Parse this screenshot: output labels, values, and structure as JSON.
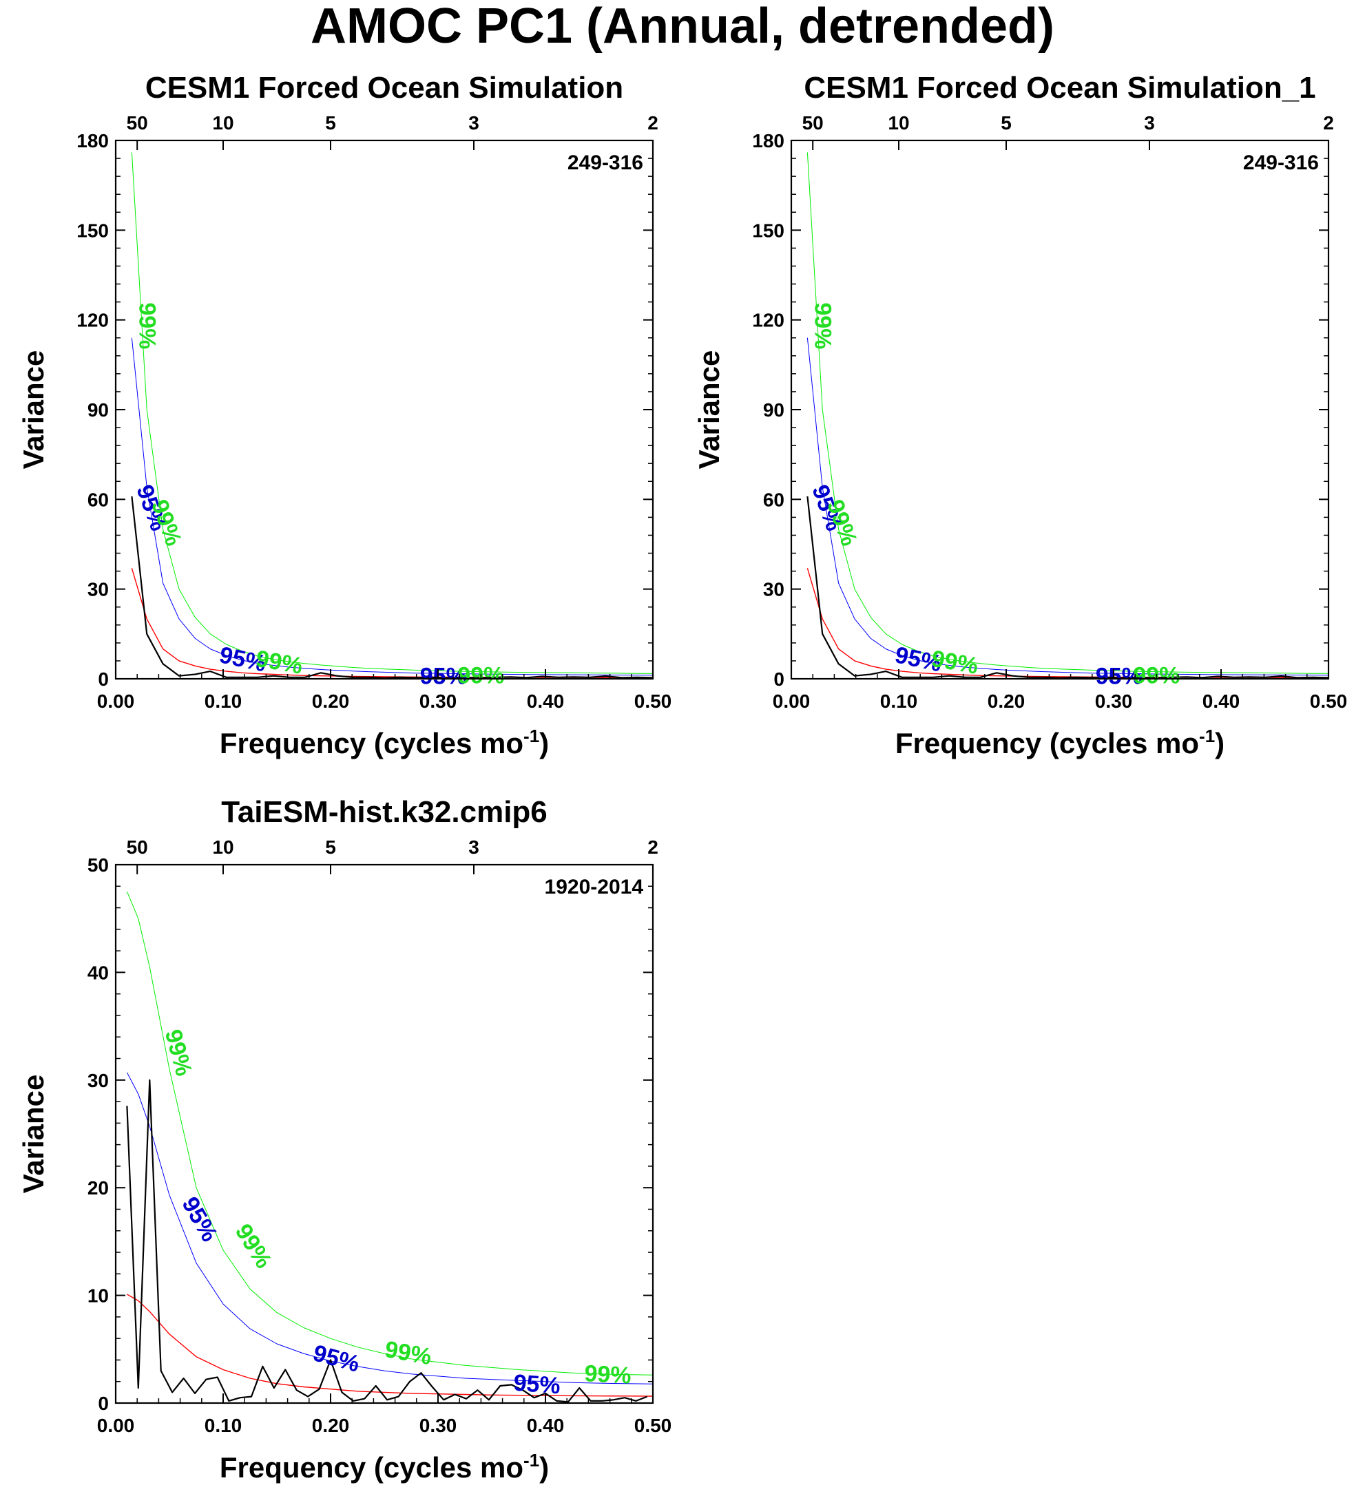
{
  "title": "AMOC PC1 (Annual, detrended)",
  "colors": {
    "spectrum": "#000000",
    "red_noise": "#ff0000",
    "ci95": "#0000ff",
    "ci99": "#00ee00",
    "ci95_text": "#0000cc",
    "ci99_text": "#22dd22"
  },
  "chart_data": [
    {
      "type": "line",
      "title": "CESM1 Forced Ocean Simulation",
      "range_label": "249-316",
      "xlabel": "Frequency (cycles mo",
      "xlabel_sup": "-1",
      "xlabel_close": ")",
      "ylabel": "Variance",
      "xlim": [
        0,
        0.5
      ],
      "ylim": [
        0,
        180
      ],
      "xticks": [
        0.0,
        0.1,
        0.2,
        0.3,
        0.4,
        0.5
      ],
      "xtick_labels": [
        "0.00",
        "0.10",
        "0.20",
        "0.30",
        "0.40",
        "0.50"
      ],
      "yticks": [
        0,
        30,
        60,
        90,
        120,
        150,
        180
      ],
      "ytick_labels": [
        "0",
        "30",
        "60",
        "90",
        "120",
        "150",
        "180"
      ],
      "period_ticks": [
        50,
        10,
        5,
        3,
        2
      ],
      "period_labels": [
        "50",
        "10",
        "5",
        "3",
        "2"
      ],
      "label_95": "95%",
      "label_99": "99%",
      "series": [
        {
          "key": "spectrum",
          "x": [
            0.015,
            0.029,
            0.044,
            0.059,
            0.074,
            0.088,
            0.103,
            0.118,
            0.132,
            0.147,
            0.162,
            0.176,
            0.191,
            0.206,
            0.221,
            0.235,
            0.25,
            0.265,
            0.279,
            0.294,
            0.309,
            0.324,
            0.338,
            0.353,
            0.368,
            0.382,
            0.397,
            0.412,
            0.426,
            0.441,
            0.456,
            0.471,
            0.485,
            0.5
          ],
          "values": [
            61,
            15,
            5,
            1,
            1.5,
            2.5,
            0.5,
            0.5,
            0.5,
            1,
            0.5,
            0.5,
            2,
            1,
            0.5,
            0.5,
            0.3,
            0.5,
            0.4,
            0.5,
            0.3,
            0.5,
            0.3,
            0.5,
            0.6,
            0.4,
            0.8,
            0.5,
            0.6,
            0.5,
            0.9,
            0.4,
            0.5,
            0.4
          ]
        },
        {
          "key": "red_noise",
          "x": [
            0.015,
            0.029,
            0.044,
            0.059,
            0.074,
            0.088,
            0.103,
            0.118,
            0.132,
            0.147,
            0.162,
            0.176,
            0.191,
            0.206,
            0.221,
            0.235,
            0.25,
            0.279,
            0.309,
            0.338,
            0.368,
            0.397,
            0.426,
            0.456,
            0.485,
            0.5
          ],
          "values": [
            37,
            20,
            10,
            6,
            4.3,
            3.2,
            2.5,
            2,
            1.7,
            1.5,
            1.3,
            1.1,
            1,
            0.9,
            0.8,
            0.75,
            0.7,
            0.62,
            0.56,
            0.52,
            0.48,
            0.45,
            0.43,
            0.41,
            0.4,
            0.39
          ]
        },
        {
          "key": "ci95",
          "x": [
            0.015,
            0.029,
            0.044,
            0.059,
            0.074,
            0.088,
            0.103,
            0.118,
            0.132,
            0.147,
            0.162,
            0.176,
            0.191,
            0.206,
            0.221,
            0.235,
            0.25,
            0.279,
            0.309,
            0.338,
            0.368,
            0.397,
            0.426,
            0.456,
            0.485,
            0.5
          ],
          "values": [
            114,
            64,
            32,
            20,
            13.5,
            10,
            7.8,
            6.2,
            5.2,
            4.5,
            3.9,
            3.5,
            3.1,
            2.8,
            2.6,
            2.4,
            2.2,
            1.9,
            1.8,
            1.6,
            1.5,
            1.4,
            1.35,
            1.3,
            1.25,
            1.2
          ]
        },
        {
          "key": "ci99",
          "x": [
            0.015,
            0.029,
            0.044,
            0.059,
            0.074,
            0.088,
            0.103,
            0.118,
            0.132,
            0.147,
            0.162,
            0.176,
            0.191,
            0.206,
            0.221,
            0.235,
            0.25,
            0.279,
            0.309,
            0.338,
            0.368,
            0.397,
            0.426,
            0.456,
            0.485,
            0.5
          ],
          "values": [
            176,
            90,
            50,
            30,
            20.5,
            15,
            11.5,
            9.2,
            7.6,
            6.5,
            5.7,
            5.1,
            4.6,
            4.2,
            3.8,
            3.5,
            3.3,
            2.9,
            2.6,
            2.4,
            2.2,
            2.1,
            2,
            1.9,
            1.8,
            1.8
          ]
        }
      ],
      "curve_labels": [
        {
          "key": "ci99",
          "x": 0.028,
          "y": 118,
          "rotate": 90
        },
        {
          "key": "ci95",
          "x": 0.032,
          "y": 57,
          "rotate": 70
        },
        {
          "key": "ci99",
          "x": 0.046,
          "y": 52,
          "rotate": 70
        },
        {
          "key": "ci95",
          "x": 0.118,
          "y": 6,
          "rotate": 12
        },
        {
          "key": "ci99",
          "x": 0.152,
          "y": 5,
          "rotate": 10
        },
        {
          "key": "ci95",
          "x": 0.305,
          "y": 0.3,
          "rotate": 0
        },
        {
          "key": "ci99",
          "x": 0.34,
          "y": 0.6,
          "rotate": 0
        }
      ]
    },
    {
      "type": "line",
      "title": "CESM1 Forced Ocean Simulation_1",
      "range_label": "249-316",
      "xlabel": "Frequency (cycles mo",
      "xlabel_sup": "-1",
      "xlabel_close": ")",
      "ylabel": "Variance",
      "xlim": [
        0,
        0.5
      ],
      "ylim": [
        0,
        180
      ],
      "xticks": [
        0.0,
        0.1,
        0.2,
        0.3,
        0.4,
        0.5
      ],
      "xtick_labels": [
        "0.00",
        "0.10",
        "0.20",
        "0.30",
        "0.40",
        "0.50"
      ],
      "yticks": [
        0,
        30,
        60,
        90,
        120,
        150,
        180
      ],
      "ytick_labels": [
        "0",
        "30",
        "60",
        "90",
        "120",
        "150",
        "180"
      ],
      "period_ticks": [
        50,
        10,
        5,
        3,
        2
      ],
      "period_labels": [
        "50",
        "10",
        "5",
        "3",
        "2"
      ],
      "label_95": "95%",
      "label_99": "99%",
      "series": [
        {
          "key": "spectrum",
          "x": [
            0.015,
            0.029,
            0.044,
            0.059,
            0.074,
            0.088,
            0.103,
            0.118,
            0.132,
            0.147,
            0.162,
            0.176,
            0.191,
            0.206,
            0.221,
            0.235,
            0.25,
            0.265,
            0.279,
            0.294,
            0.309,
            0.324,
            0.338,
            0.353,
            0.368,
            0.382,
            0.397,
            0.412,
            0.426,
            0.441,
            0.456,
            0.471,
            0.485,
            0.5
          ],
          "values": [
            61,
            15,
            5,
            1,
            1.5,
            2.5,
            0.5,
            0.5,
            0.5,
            1,
            0.5,
            0.5,
            2,
            1,
            0.5,
            0.5,
            0.3,
            0.5,
            0.4,
            0.5,
            0.3,
            0.5,
            0.3,
            0.5,
            0.6,
            0.4,
            0.8,
            0.5,
            0.6,
            0.5,
            0.9,
            0.4,
            0.5,
            0.4
          ]
        },
        {
          "key": "red_noise",
          "x": [
            0.015,
            0.029,
            0.044,
            0.059,
            0.074,
            0.088,
            0.103,
            0.118,
            0.132,
            0.147,
            0.162,
            0.176,
            0.191,
            0.206,
            0.221,
            0.235,
            0.25,
            0.279,
            0.309,
            0.338,
            0.368,
            0.397,
            0.426,
            0.456,
            0.485,
            0.5
          ],
          "values": [
            37,
            20,
            10,
            6,
            4.3,
            3.2,
            2.5,
            2,
            1.7,
            1.5,
            1.3,
            1.1,
            1,
            0.9,
            0.8,
            0.75,
            0.7,
            0.62,
            0.56,
            0.52,
            0.48,
            0.45,
            0.43,
            0.41,
            0.4,
            0.39
          ]
        },
        {
          "key": "ci95",
          "x": [
            0.015,
            0.029,
            0.044,
            0.059,
            0.074,
            0.088,
            0.103,
            0.118,
            0.132,
            0.147,
            0.162,
            0.176,
            0.191,
            0.206,
            0.221,
            0.235,
            0.25,
            0.279,
            0.309,
            0.338,
            0.368,
            0.397,
            0.426,
            0.456,
            0.485,
            0.5
          ],
          "values": [
            114,
            64,
            32,
            20,
            13.5,
            10,
            7.8,
            6.2,
            5.2,
            4.5,
            3.9,
            3.5,
            3.1,
            2.8,
            2.6,
            2.4,
            2.2,
            1.9,
            1.8,
            1.6,
            1.5,
            1.4,
            1.35,
            1.3,
            1.25,
            1.2
          ]
        },
        {
          "key": "ci99",
          "x": [
            0.015,
            0.029,
            0.044,
            0.059,
            0.074,
            0.088,
            0.103,
            0.118,
            0.132,
            0.147,
            0.162,
            0.176,
            0.191,
            0.206,
            0.221,
            0.235,
            0.25,
            0.279,
            0.309,
            0.338,
            0.368,
            0.397,
            0.426,
            0.456,
            0.485,
            0.5
          ],
          "values": [
            176,
            90,
            50,
            30,
            20.5,
            15,
            11.5,
            9.2,
            7.6,
            6.5,
            5.7,
            5.1,
            4.6,
            4.2,
            3.8,
            3.5,
            3.3,
            2.9,
            2.6,
            2.4,
            2.2,
            2.1,
            2,
            1.9,
            1.8,
            1.8
          ]
        }
      ],
      "curve_labels": [
        {
          "key": "ci99",
          "x": 0.028,
          "y": 118,
          "rotate": 90
        },
        {
          "key": "ci95",
          "x": 0.032,
          "y": 57,
          "rotate": 70
        },
        {
          "key": "ci99",
          "x": 0.046,
          "y": 52,
          "rotate": 70
        },
        {
          "key": "ci95",
          "x": 0.118,
          "y": 6,
          "rotate": 12
        },
        {
          "key": "ci99",
          "x": 0.152,
          "y": 5,
          "rotate": 10
        },
        {
          "key": "ci95",
          "x": 0.305,
          "y": 0.3,
          "rotate": 0
        },
        {
          "key": "ci99",
          "x": 0.34,
          "y": 0.6,
          "rotate": 0
        }
      ]
    },
    {
      "type": "line",
      "title": "TaiESM-hist.k32.cmip6",
      "range_label": "1920-2014",
      "xlabel": "Frequency (cycles mo",
      "xlabel_sup": "-1",
      "xlabel_close": ")",
      "ylabel": "Variance",
      "xlim": [
        0,
        0.5
      ],
      "ylim": [
        0,
        50
      ],
      "xticks": [
        0.0,
        0.1,
        0.2,
        0.3,
        0.4,
        0.5
      ],
      "xtick_labels": [
        "0.00",
        "0.10",
        "0.20",
        "0.30",
        "0.40",
        "0.50"
      ],
      "yticks": [
        0,
        10,
        20,
        30,
        40,
        50
      ],
      "ytick_labels": [
        "0",
        "10",
        "20",
        "30",
        "40",
        "50"
      ],
      "period_ticks": [
        50,
        10,
        5,
        3,
        2
      ],
      "period_labels": [
        "50",
        "10",
        "5",
        "3",
        "2"
      ],
      "label_95": "95%",
      "label_99": "99%",
      "series": [
        {
          "key": "spectrum",
          "x": [
            0.0105,
            0.021,
            0.0316,
            0.0421,
            0.0526,
            0.0632,
            0.0737,
            0.0842,
            0.0947,
            0.1053,
            0.1158,
            0.1263,
            0.1368,
            0.1474,
            0.1579,
            0.1684,
            0.1789,
            0.1895,
            0.2,
            0.2105,
            0.2211,
            0.2316,
            0.2421,
            0.2526,
            0.2632,
            0.2737,
            0.2842,
            0.2947,
            0.3053,
            0.3158,
            0.3263,
            0.3368,
            0.3474,
            0.3579,
            0.3684,
            0.3789,
            0.3895,
            0.4,
            0.4105,
            0.4211,
            0.4316,
            0.4421,
            0.4526,
            0.4632,
            0.4737,
            0.4842,
            0.4947
          ],
          "values": [
            27.6,
            1.4,
            30,
            3,
            1,
            2.3,
            0.9,
            2.2,
            2.4,
            0.2,
            0.5,
            0.6,
            3.4,
            1.4,
            3.1,
            1.2,
            0.6,
            1.3,
            4,
            1,
            0.2,
            0.4,
            1.6,
            0.3,
            0.6,
            2,
            2.8,
            1.5,
            0.3,
            0.8,
            0.4,
            1.2,
            0.3,
            1.6,
            1.7,
            1.2,
            0.5,
            0.9,
            0.2,
            0.1,
            1.4,
            0.2,
            0.2,
            0.3,
            0.5,
            0.2,
            0.6
          ]
        },
        {
          "key": "red_noise",
          "x": [
            0.0105,
            0.021,
            0.0316,
            0.05,
            0.075,
            0.1,
            0.125,
            0.15,
            0.175,
            0.2,
            0.225,
            0.25,
            0.275,
            0.3,
            0.325,
            0.35,
            0.375,
            0.4,
            0.425,
            0.45,
            0.475,
            0.5
          ],
          "values": [
            10.1,
            9.5,
            8.5,
            6.4,
            4.3,
            3.1,
            2.3,
            1.8,
            1.5,
            1.3,
            1.1,
            1,
            0.9,
            0.85,
            0.8,
            0.75,
            0.72,
            0.7,
            0.68,
            0.66,
            0.65,
            0.64
          ]
        },
        {
          "key": "ci95",
          "x": [
            0.0105,
            0.021,
            0.0316,
            0.05,
            0.075,
            0.1,
            0.125,
            0.15,
            0.175,
            0.2,
            0.225,
            0.25,
            0.275,
            0.3,
            0.325,
            0.35,
            0.375,
            0.4,
            0.425,
            0.45,
            0.475,
            0.5
          ],
          "values": [
            30.7,
            28.7,
            25.7,
            19.3,
            13,
            9.2,
            6.9,
            5.5,
            4.6,
            3.9,
            3.4,
            3,
            2.7,
            2.5,
            2.3,
            2.2,
            2.1,
            2,
            1.9,
            1.85,
            1.8,
            1.78
          ]
        },
        {
          "key": "ci99",
          "x": [
            0.0105,
            0.021,
            0.0316,
            0.05,
            0.075,
            0.1,
            0.125,
            0.15,
            0.175,
            0.2,
            0.225,
            0.25,
            0.275,
            0.3,
            0.325,
            0.35,
            0.375,
            0.4,
            0.425,
            0.45,
            0.475,
            0.5
          ],
          "values": [
            47.5,
            45,
            40.5,
            31,
            20,
            14.2,
            10.6,
            8.4,
            7,
            6,
            5.2,
            4.6,
            4.1,
            3.8,
            3.5,
            3.3,
            3.1,
            2.95,
            2.8,
            2.7,
            2.65,
            2.6
          ]
        }
      ],
      "curve_labels": [
        {
          "key": "ci99",
          "x": 0.057,
          "y": 32.5,
          "rotate": 75
        },
        {
          "key": "ci95",
          "x": 0.077,
          "y": 17,
          "rotate": 60
        },
        {
          "key": "ci99",
          "x": 0.127,
          "y": 14.5,
          "rotate": 58
        },
        {
          "key": "ci95",
          "x": 0.205,
          "y": 4,
          "rotate": 15
        },
        {
          "key": "ci99",
          "x": 0.272,
          "y": 4.5,
          "rotate": 10
        },
        {
          "key": "ci95",
          "x": 0.392,
          "y": 1.6,
          "rotate": 4
        },
        {
          "key": "ci99",
          "x": 0.458,
          "y": 2.5,
          "rotate": 3
        }
      ]
    }
  ]
}
